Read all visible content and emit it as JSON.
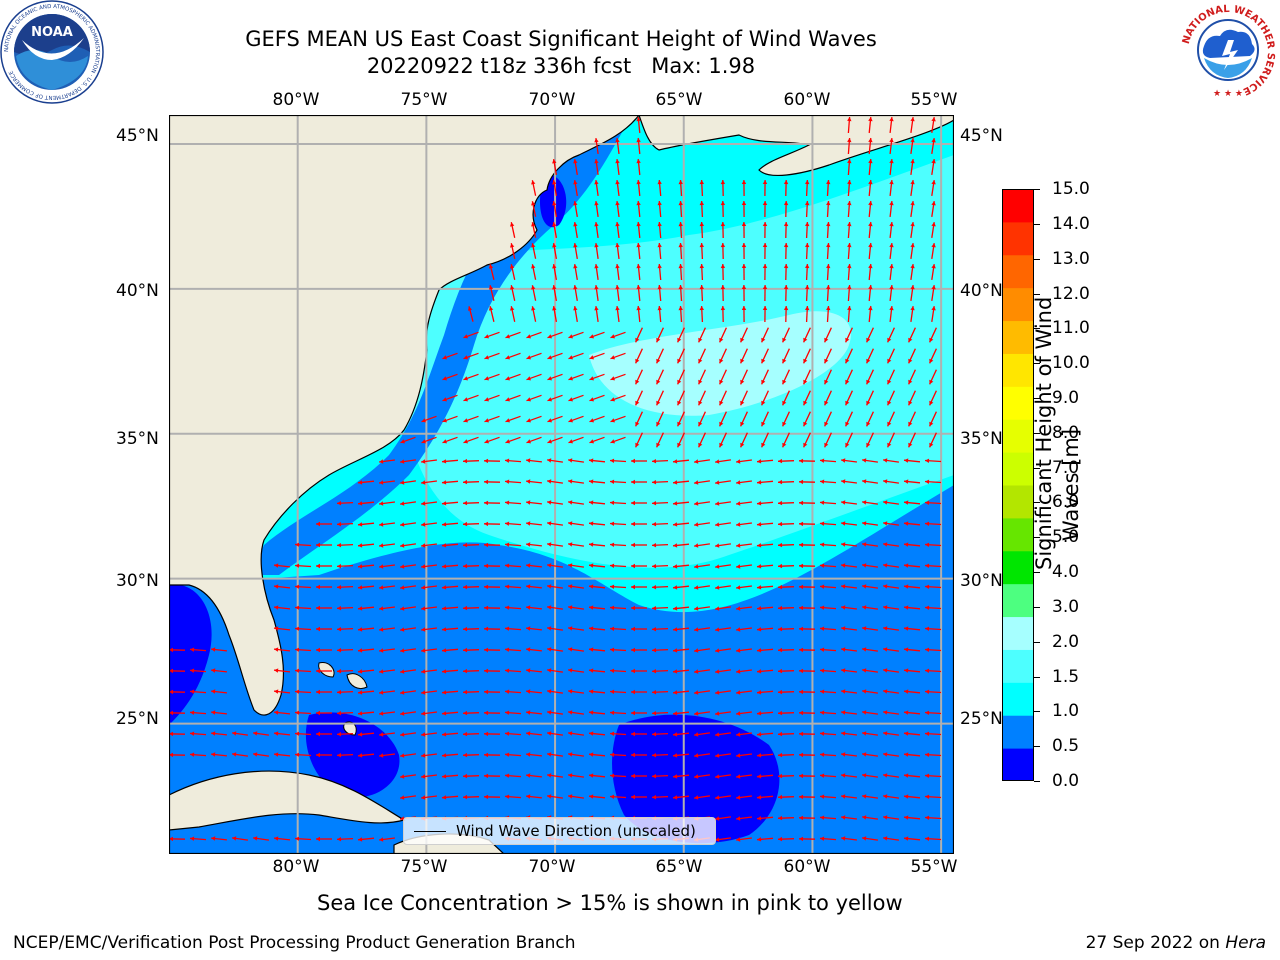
{
  "title": {
    "line1": "GEFS MEAN US East Coast Significant Height of Wind Waves",
    "line2": "20220922 t18z 336h fcst   Max: 1.98"
  },
  "map": {
    "lon_labels": [
      "80°W",
      "75°W",
      "70°W",
      "65°W",
      "60°W",
      "55°W"
    ],
    "lat_labels": [
      "45°N",
      "40°N",
      "35°N",
      "30°N",
      "25°N"
    ],
    "lon_range": [
      -85,
      -54.5
    ],
    "lat_range": [
      20.5,
      46
    ],
    "gridlines": true,
    "land_color": "#efecdc",
    "arrow_color": "#ff0000",
    "gridline_color": "#b0b0b0",
    "legend": {
      "label": "Wind Wave Direction (unscaled)",
      "position": "bottom-center"
    }
  },
  "colorbar": {
    "label_line1": "Significant Height of Wind",
    "label_line2": "Waves [m]",
    "ticks": [
      "0.0",
      "0.5",
      "1.0",
      "1.5",
      "2.0",
      "3.0",
      "4.0",
      "5.0",
      "6.0",
      "7.0",
      "8.0",
      "9.0",
      "10.0",
      "11.0",
      "12.0",
      "13.0",
      "14.0",
      "15.0"
    ],
    "colors": [
      "#0000ff",
      "#0080ff",
      "#00ffff",
      "#4dffff",
      "#a6ffff",
      "#4dff80",
      "#00e600",
      "#66e600",
      "#b3e600",
      "#ccff00",
      "#e6ff00",
      "#ffff00",
      "#ffe600",
      "#ffbb00",
      "#ff8c00",
      "#ff6600",
      "#ff3300",
      "#ff0000"
    ]
  },
  "sea_ice_note": "Sea Ice Concentration > 15% is shown in pink to yellow",
  "footer": {
    "left": "NCEP/EMC/Verification Post Processing Product Generation Branch",
    "right_prefix": "27 Sep 2022 on ",
    "right_host": "Hera"
  },
  "logos": {
    "noaa_text": "NOAA",
    "noaa_ring": "NATIONAL OCEANIC AND ATMOSPHERIC ADMINISTRATION · U.S. DEPARTMENT OF COMMERCE",
    "nws_ring": "NATIONAL WEATHER SERVICE"
  }
}
